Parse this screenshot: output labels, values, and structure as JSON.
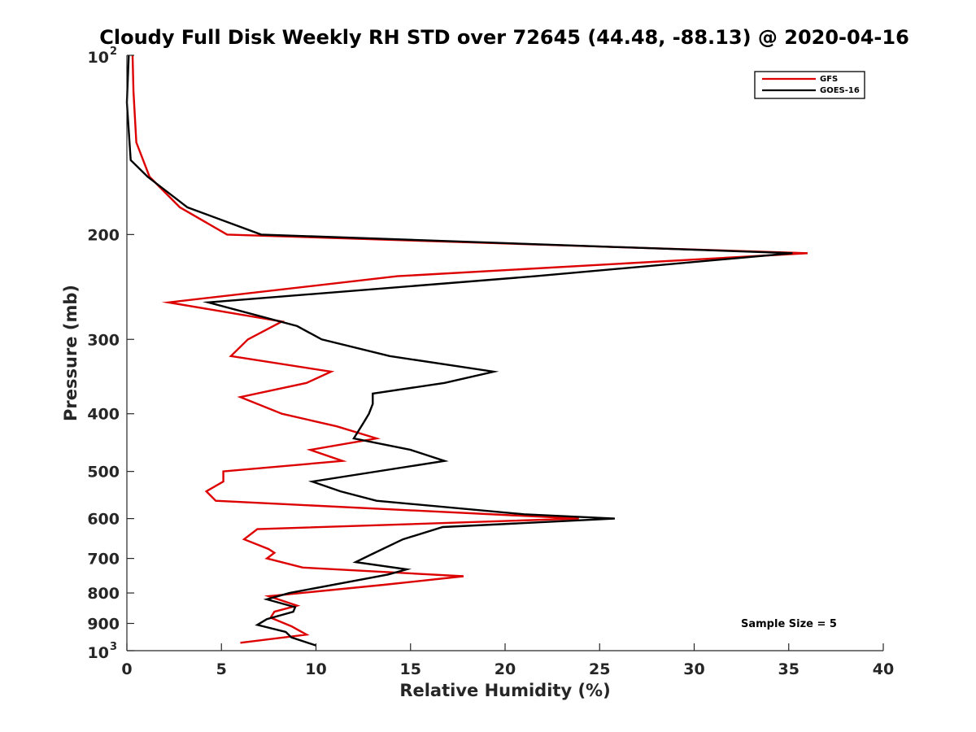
{
  "chart_data": {
    "type": "line",
    "title": "Cloudy Full Disk Weekly RH STD over 72645 (44.48, -88.13) @ 2020-04-16",
    "xlabel": "Relative Humidity (%)",
    "ylabel": "Pressure (mb)",
    "xlim": [
      0,
      40
    ],
    "ylim": [
      100,
      1000
    ],
    "yscale": "log",
    "y_reversed": true,
    "x_ticks": [
      "0",
      "5",
      "10",
      "15",
      "20",
      "25",
      "30",
      "35",
      "40"
    ],
    "y_ticks": [
      {
        "value": 100,
        "label": "10",
        "sup": "2"
      },
      {
        "value": 200,
        "label": "200"
      },
      {
        "value": 300,
        "label": "300"
      },
      {
        "value": 400,
        "label": "400"
      },
      {
        "value": 500,
        "label": "500"
      },
      {
        "value": 600,
        "label": "600"
      },
      {
        "value": 700,
        "label": "700"
      },
      {
        "value": 800,
        "label": "800"
      },
      {
        "value": 900,
        "label": "900"
      },
      {
        "value": 1000,
        "label": "10",
        "sup": "3"
      }
    ],
    "grid": false,
    "legend_position": "top-right",
    "annotation": "Sample Size = 5",
    "series": [
      {
        "name": "GFS",
        "color": "#dd0000",
        "points": [
          [
            0.3,
            100
          ],
          [
            0.35,
            115
          ],
          [
            0.5,
            140
          ],
          [
            1.2,
            160
          ],
          [
            2.8,
            180
          ],
          [
            5.3,
            200
          ],
          [
            36.0,
            215
          ],
          [
            14.3,
            235
          ],
          [
            2.2,
            260
          ],
          [
            8.2,
            280
          ],
          [
            6.4,
            300
          ],
          [
            5.5,
            320
          ],
          [
            10.8,
            340
          ],
          [
            9.5,
            355
          ],
          [
            6.0,
            375
          ],
          [
            8.2,
            400
          ],
          [
            11.1,
            420
          ],
          [
            13.2,
            440
          ],
          [
            9.7,
            460
          ],
          [
            11.4,
            480
          ],
          [
            5.1,
            500
          ],
          [
            5.1,
            520
          ],
          [
            4.2,
            540
          ],
          [
            4.7,
            560
          ],
          [
            23.9,
            600
          ],
          [
            6.9,
            625
          ],
          [
            6.2,
            650
          ],
          [
            7.5,
            675
          ],
          [
            7.8,
            685
          ],
          [
            7.4,
            700
          ],
          [
            9.3,
            725
          ],
          [
            17.8,
            750
          ],
          [
            13.6,
            775
          ],
          [
            7.5,
            810
          ],
          [
            9.0,
            840
          ],
          [
            7.8,
            860
          ],
          [
            7.6,
            880
          ],
          [
            8.7,
            910
          ],
          [
            9.5,
            940
          ],
          [
            6.0,
            970
          ]
        ]
      },
      {
        "name": "GOES-16",
        "color": "#000000",
        "points": [
          [
            0.1,
            100
          ],
          [
            0.0,
            120
          ],
          [
            0.2,
            150
          ],
          [
            1.1,
            160
          ],
          [
            3.2,
            180
          ],
          [
            7.1,
            200
          ],
          [
            35.2,
            215
          ],
          [
            21.6,
            235
          ],
          [
            4.3,
            260
          ],
          [
            9.0,
            285
          ],
          [
            10.3,
            300
          ],
          [
            13.9,
            320
          ],
          [
            19.4,
            340
          ],
          [
            16.8,
            355
          ],
          [
            13.0,
            370
          ],
          [
            13.0,
            385
          ],
          [
            12.8,
            400
          ],
          [
            12.5,
            415
          ],
          [
            12.0,
            440
          ],
          [
            15.0,
            460
          ],
          [
            16.8,
            480
          ],
          [
            9.8,
            520
          ],
          [
            11.3,
            540
          ],
          [
            13.2,
            560
          ],
          [
            21.0,
            590
          ],
          [
            25.8,
            600
          ],
          [
            16.7,
            620
          ],
          [
            14.6,
            650
          ],
          [
            12.9,
            690
          ],
          [
            12.1,
            710
          ],
          [
            14.8,
            730
          ],
          [
            13.8,
            745
          ],
          [
            8.6,
            800
          ],
          [
            7.4,
            820
          ],
          [
            8.9,
            845
          ],
          [
            8.8,
            860
          ],
          [
            7.4,
            885
          ],
          [
            6.9,
            905
          ],
          [
            8.4,
            930
          ],
          [
            8.7,
            950
          ],
          [
            10.0,
            980
          ]
        ]
      }
    ]
  }
}
